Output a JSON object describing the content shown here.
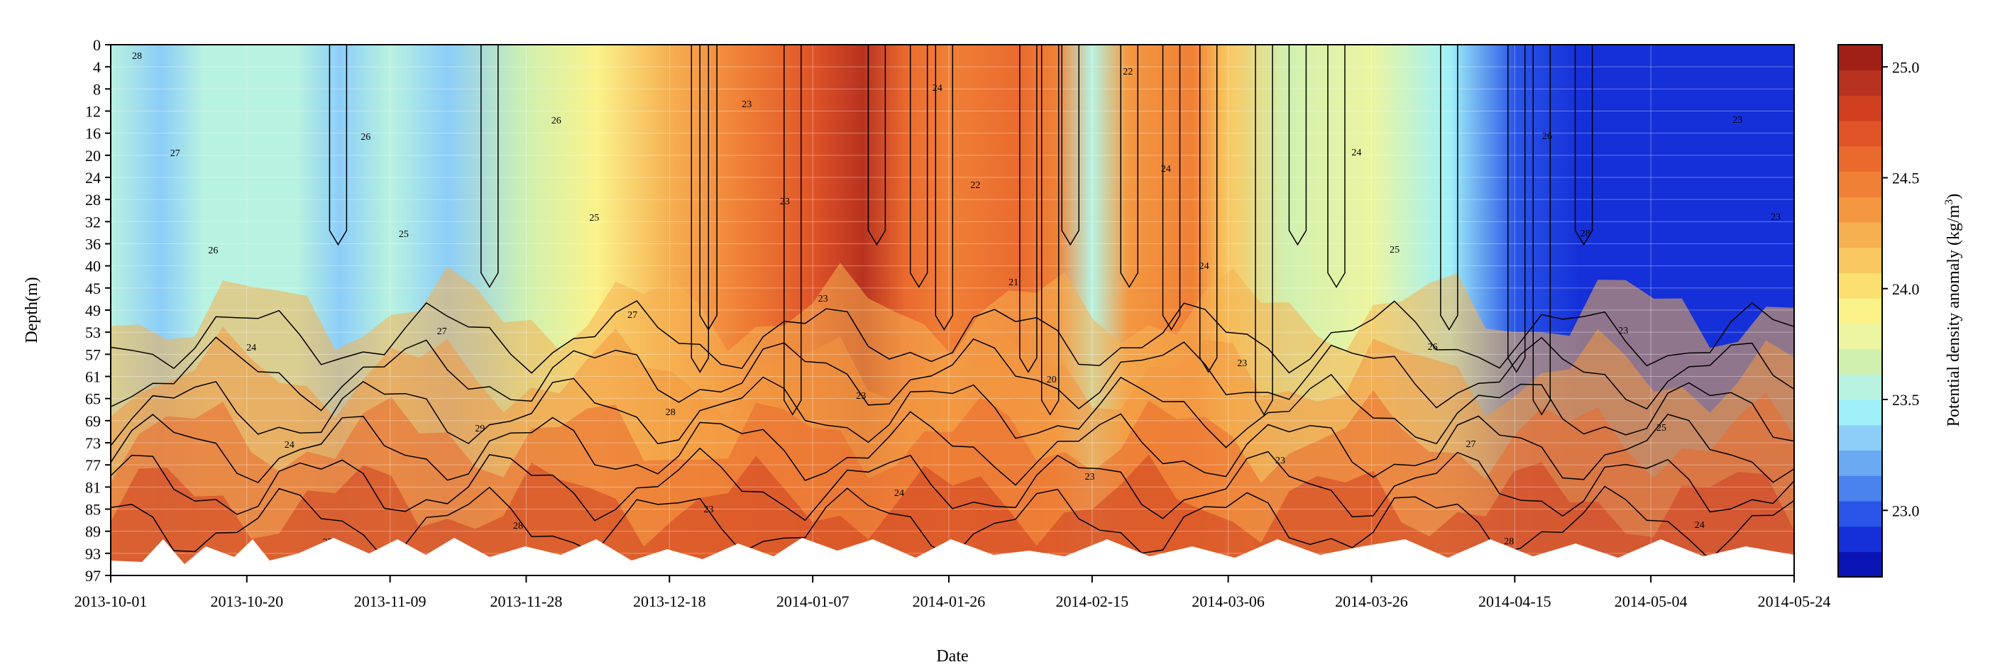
{
  "chart_data": {
    "type": "heatmap",
    "subtype": "filled-contour",
    "xlabel": "Date",
    "ylabel": "Depth(m)",
    "colorbar_label": "Potential density anomaly (kg/m",
    "colorbar_label_sup": "3",
    "colorbar_label_end": ")",
    "x_ticks": [
      "2013-10-01",
      "2013-10-20",
      "2013-11-09",
      "2013-11-28",
      "2013-12-18",
      "2014-01-07",
      "2014-01-26",
      "2014-02-15",
      "2014-03-06",
      "2014-03-26",
      "2014-04-15",
      "2014-05-04",
      "2014-05-24"
    ],
    "xlim": [
      "2013-10-01",
      "2014-05-24"
    ],
    "y_ticks": [
      0,
      4,
      8,
      12,
      16,
      20,
      24,
      28,
      32,
      36,
      40,
      45,
      49,
      53,
      57,
      61,
      65,
      69,
      73,
      77,
      81,
      85,
      89,
      93,
      97
    ],
    "ylim": [
      0,
      97
    ],
    "y_inverted": true,
    "colorbar_ticks": [
      23.0,
      23.5,
      24.0,
      24.5,
      25.0
    ],
    "clim": [
      22.7,
      25.1
    ],
    "colormap": [
      "#0a14b4",
      "#1530d8",
      "#2a55e8",
      "#4a82ee",
      "#6aaaf2",
      "#8ccdf8",
      "#9ff0f8",
      "#b8f2e0",
      "#d0f0b0",
      "#ecf5a0",
      "#fbf28a",
      "#fbe070",
      "#f9c860",
      "#f6b050",
      "#f39840",
      "#f08036",
      "#ea6a2e",
      "#e05428",
      "#d04020",
      "#b83220",
      "#a02018"
    ],
    "grid": true,
    "contour_levels_labeled": [
      "20",
      "21",
      "22",
      "23",
      "24",
      "25",
      "26",
      "27",
      "28"
    ],
    "contour_labels": [
      "28",
      "27",
      "26",
      "24",
      "24",
      "25",
      "26",
      "25",
      "27",
      "29",
      "28",
      "26",
      "25",
      "27",
      "28",
      "23",
      "23",
      "23",
      "23",
      "23",
      "24",
      "24",
      "22",
      "21",
      "20",
      "23",
      "22",
      "24",
      "24",
      "23",
      "23",
      "24",
      "24",
      "25",
      "26",
      "27",
      "28",
      "26",
      "28",
      "23",
      "25",
      "24",
      "23",
      "23"
    ],
    "surface_profile_tsigma": [
      {
        "date": "2013-10-01",
        "v": 23.6
      },
      {
        "date": "2013-10-08",
        "v": 23.3
      },
      {
        "date": "2013-10-14",
        "v": 23.5
      },
      {
        "date": "2013-10-20",
        "v": 23.55
      },
      {
        "date": "2013-10-27",
        "v": 23.5
      },
      {
        "date": "2013-11-02",
        "v": 23.3
      },
      {
        "date": "2013-11-09",
        "v": 23.6
      },
      {
        "date": "2013-11-17",
        "v": 23.3
      },
      {
        "date": "2013-11-28",
        "v": 23.65
      },
      {
        "date": "2013-12-08",
        "v": 23.9
      },
      {
        "date": "2013-12-18",
        "v": 24.2
      },
      {
        "date": "2013-12-28",
        "v": 24.45
      },
      {
        "date": "2014-01-07",
        "v": 24.7
      },
      {
        "date": "2014-01-14",
        "v": 24.9
      },
      {
        "date": "2014-01-20",
        "v": 24.6
      },
      {
        "date": "2014-01-26",
        "v": 24.5
      },
      {
        "date": "2014-02-05",
        "v": 24.6
      },
      {
        "date": "2014-02-10",
        "v": 24.45
      },
      {
        "date": "2014-02-15",
        "v": 23.5
      },
      {
        "date": "2014-02-20",
        "v": 24.3
      },
      {
        "date": "2014-03-01",
        "v": 24.5
      },
      {
        "date": "2014-03-06",
        "v": 24.1
      },
      {
        "date": "2014-03-14",
        "v": 23.7
      },
      {
        "date": "2014-03-26",
        "v": 23.8
      },
      {
        "date": "2014-04-06",
        "v": 23.4
      },
      {
        "date": "2014-04-15",
        "v": 23.0
      },
      {
        "date": "2014-04-24",
        "v": 22.85
      },
      {
        "date": "2014-05-04",
        "v": 22.9
      },
      {
        "date": "2014-05-24",
        "v": 22.9
      }
    ]
  }
}
